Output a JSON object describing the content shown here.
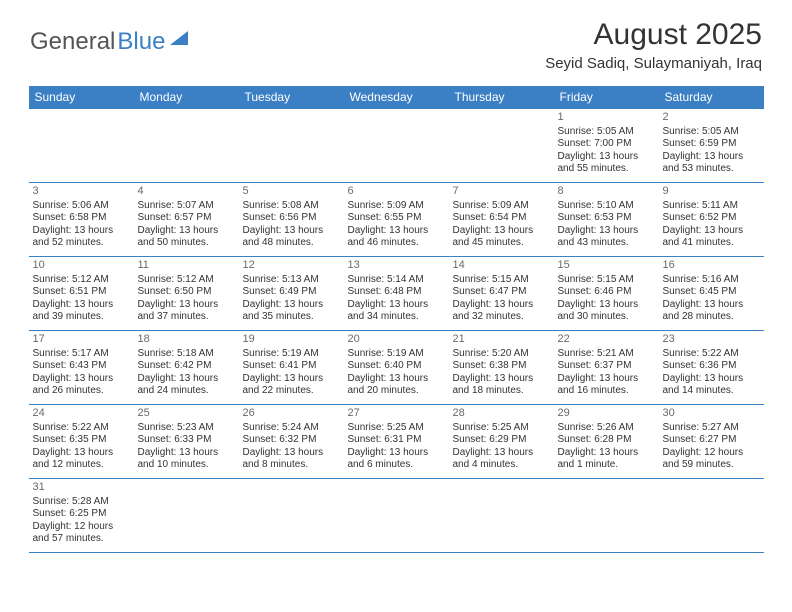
{
  "logo": {
    "part1": "General",
    "part2": "Blue"
  },
  "title": "August 2025",
  "location": "Seyid Sadiq, Sulaymaniyah, Iraq",
  "dayHeaders": [
    "Sunday",
    "Monday",
    "Tuesday",
    "Wednesday",
    "Thursday",
    "Friday",
    "Saturday"
  ],
  "colors": {
    "headerBg": "#3b7fc4",
    "headerText": "#ffffff",
    "border": "#3b7fc4",
    "text": "#333333",
    "dayNum": "#6a6a6a"
  },
  "firstDayOffset": 5,
  "days": [
    {
      "n": 1,
      "sr": "5:05 AM",
      "ss": "7:00 PM",
      "dl": "13 hours and 55 minutes."
    },
    {
      "n": 2,
      "sr": "5:05 AM",
      "ss": "6:59 PM",
      "dl": "13 hours and 53 minutes."
    },
    {
      "n": 3,
      "sr": "5:06 AM",
      "ss": "6:58 PM",
      "dl": "13 hours and 52 minutes."
    },
    {
      "n": 4,
      "sr": "5:07 AM",
      "ss": "6:57 PM",
      "dl": "13 hours and 50 minutes."
    },
    {
      "n": 5,
      "sr": "5:08 AM",
      "ss": "6:56 PM",
      "dl": "13 hours and 48 minutes."
    },
    {
      "n": 6,
      "sr": "5:09 AM",
      "ss": "6:55 PM",
      "dl": "13 hours and 46 minutes."
    },
    {
      "n": 7,
      "sr": "5:09 AM",
      "ss": "6:54 PM",
      "dl": "13 hours and 45 minutes."
    },
    {
      "n": 8,
      "sr": "5:10 AM",
      "ss": "6:53 PM",
      "dl": "13 hours and 43 minutes."
    },
    {
      "n": 9,
      "sr": "5:11 AM",
      "ss": "6:52 PM",
      "dl": "13 hours and 41 minutes."
    },
    {
      "n": 10,
      "sr": "5:12 AM",
      "ss": "6:51 PM",
      "dl": "13 hours and 39 minutes."
    },
    {
      "n": 11,
      "sr": "5:12 AM",
      "ss": "6:50 PM",
      "dl": "13 hours and 37 minutes."
    },
    {
      "n": 12,
      "sr": "5:13 AM",
      "ss": "6:49 PM",
      "dl": "13 hours and 35 minutes."
    },
    {
      "n": 13,
      "sr": "5:14 AM",
      "ss": "6:48 PM",
      "dl": "13 hours and 34 minutes."
    },
    {
      "n": 14,
      "sr": "5:15 AM",
      "ss": "6:47 PM",
      "dl": "13 hours and 32 minutes."
    },
    {
      "n": 15,
      "sr": "5:15 AM",
      "ss": "6:46 PM",
      "dl": "13 hours and 30 minutes."
    },
    {
      "n": 16,
      "sr": "5:16 AM",
      "ss": "6:45 PM",
      "dl": "13 hours and 28 minutes."
    },
    {
      "n": 17,
      "sr": "5:17 AM",
      "ss": "6:43 PM",
      "dl": "13 hours and 26 minutes."
    },
    {
      "n": 18,
      "sr": "5:18 AM",
      "ss": "6:42 PM",
      "dl": "13 hours and 24 minutes."
    },
    {
      "n": 19,
      "sr": "5:19 AM",
      "ss": "6:41 PM",
      "dl": "13 hours and 22 minutes."
    },
    {
      "n": 20,
      "sr": "5:19 AM",
      "ss": "6:40 PM",
      "dl": "13 hours and 20 minutes."
    },
    {
      "n": 21,
      "sr": "5:20 AM",
      "ss": "6:38 PM",
      "dl": "13 hours and 18 minutes."
    },
    {
      "n": 22,
      "sr": "5:21 AM",
      "ss": "6:37 PM",
      "dl": "13 hours and 16 minutes."
    },
    {
      "n": 23,
      "sr": "5:22 AM",
      "ss": "6:36 PM",
      "dl": "13 hours and 14 minutes."
    },
    {
      "n": 24,
      "sr": "5:22 AM",
      "ss": "6:35 PM",
      "dl": "13 hours and 12 minutes."
    },
    {
      "n": 25,
      "sr": "5:23 AM",
      "ss": "6:33 PM",
      "dl": "13 hours and 10 minutes."
    },
    {
      "n": 26,
      "sr": "5:24 AM",
      "ss": "6:32 PM",
      "dl": "13 hours and 8 minutes."
    },
    {
      "n": 27,
      "sr": "5:25 AM",
      "ss": "6:31 PM",
      "dl": "13 hours and 6 minutes."
    },
    {
      "n": 28,
      "sr": "5:25 AM",
      "ss": "6:29 PM",
      "dl": "13 hours and 4 minutes."
    },
    {
      "n": 29,
      "sr": "5:26 AM",
      "ss": "6:28 PM",
      "dl": "13 hours and 1 minute."
    },
    {
      "n": 30,
      "sr": "5:27 AM",
      "ss": "6:27 PM",
      "dl": "12 hours and 59 minutes."
    },
    {
      "n": 31,
      "sr": "5:28 AM",
      "ss": "6:25 PM",
      "dl": "12 hours and 57 minutes."
    }
  ],
  "labels": {
    "sunrise": "Sunrise:",
    "sunset": "Sunset:",
    "daylight": "Daylight:"
  }
}
